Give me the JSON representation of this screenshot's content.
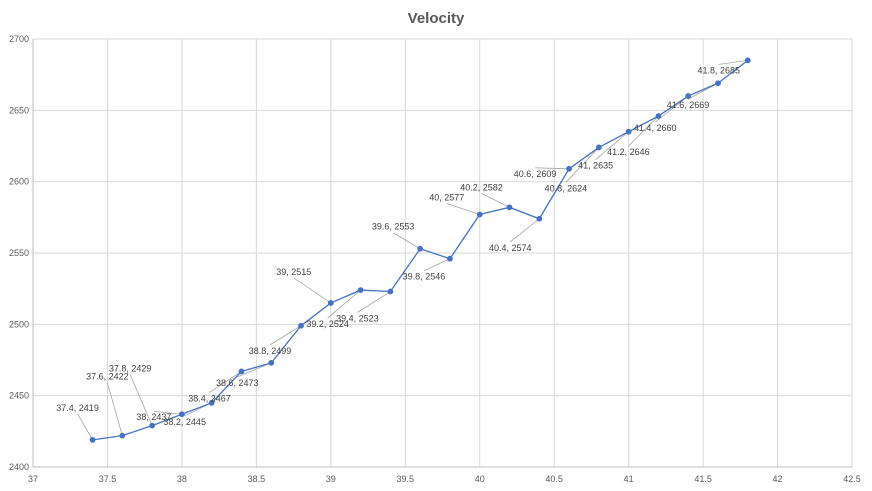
{
  "chart_data": {
    "type": "line",
    "title": "Velocity",
    "xlabel": "",
    "ylabel": "",
    "xlim": [
      37,
      42.5
    ],
    "ylim": [
      2400,
      2700
    ],
    "x_ticks": [
      37,
      37.5,
      38,
      38.5,
      39,
      39.5,
      40,
      40.5,
      41,
      41.5,
      42,
      42.5
    ],
    "y_ticks": [
      2400,
      2450,
      2500,
      2550,
      2600,
      2650,
      2700
    ],
    "x_tick_labels": [
      "37",
      "37.5",
      "38",
      "38.5",
      "39",
      "39.5",
      "40",
      "40.5",
      "41",
      "41.5",
      "42",
      "42.5"
    ],
    "y_tick_labels": [
      "2400",
      "2450",
      "2500",
      "2550",
      "2600",
      "2650",
      "2700"
    ],
    "grid": true,
    "legend": "none",
    "line_color": "#4472c4",
    "series": [
      {
        "x": [
          37.4,
          37.6,
          37.8,
          38,
          38.2,
          38.4,
          38.6,
          38.8,
          39,
          39.2,
          39.4,
          39.6,
          39.8,
          40,
          40.2,
          40.4,
          40.6,
          40.8,
          41,
          41.2,
          41.4,
          41.6,
          41.8
        ],
        "y": [
          2419,
          2422,
          2429,
          2437,
          2445,
          2467,
          2473,
          2499,
          2515,
          2524,
          2523,
          2553,
          2546,
          2577,
          2582,
          2574,
          2609,
          2624,
          2635,
          2646,
          2660,
          2669,
          2685
        ],
        "labels": [
          "37.4, 2419",
          "37.6, 2422",
          "37.8, 2429",
          "38, 2437",
          "38.2, 2445",
          "38.4, 2467",
          "38.6, 2473",
          "38.8, 2499",
          "39, 2515",
          "39.2, 2524",
          "39.4, 2523",
          "39.6, 2553",
          "39.8, 2546",
          "40, 2577",
          "40.2, 2582",
          "40.4, 2574",
          "40.6, 2609",
          "40.8, 2624",
          "41, 2635",
          "41.2, 2646",
          "41.4, 2660",
          "41.6, 2669",
          "41.8, 2685"
        ]
      }
    ]
  }
}
